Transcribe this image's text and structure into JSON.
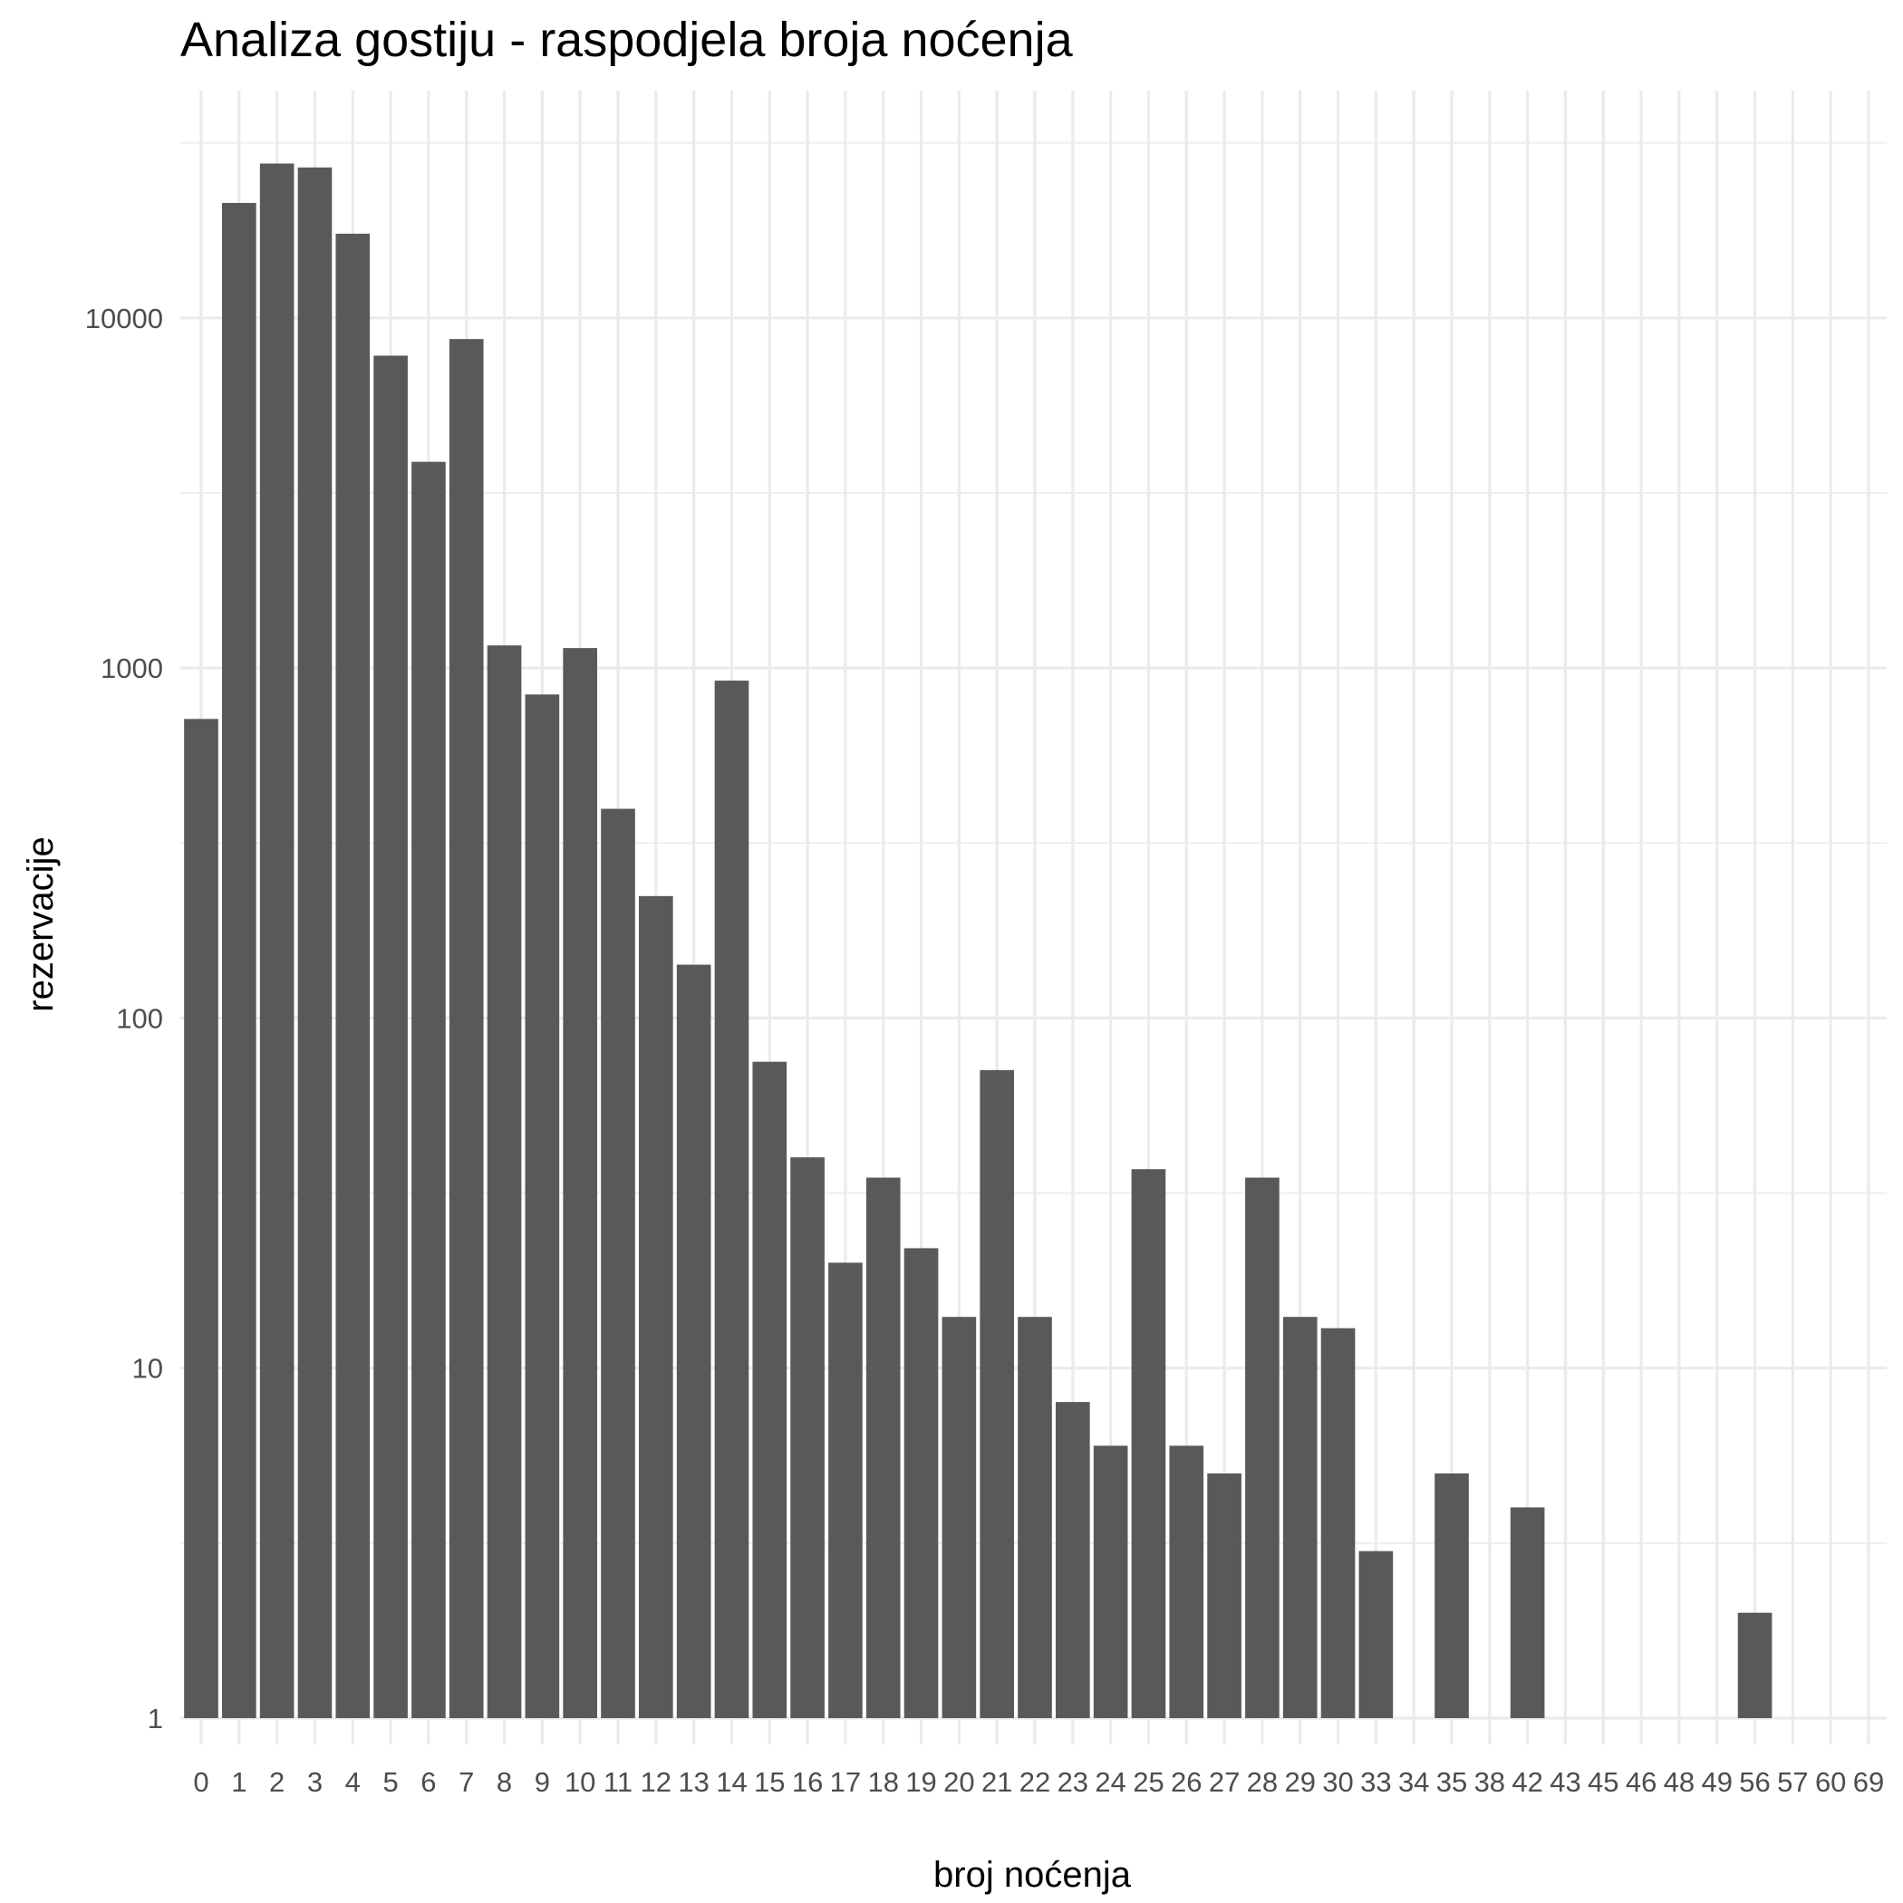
{
  "chart_data": {
    "type": "bar",
    "title": "Analiza gostiju - raspodjela broja noćenja",
    "xlabel": "broj noćenja",
    "ylabel": "rezervacije",
    "y_scale": "log10",
    "ylim": [
      1,
      50000
    ],
    "y_ticks": [
      1,
      10,
      100,
      1000,
      10000
    ],
    "y_tick_labels": [
      "1",
      "10",
      "100",
      "1000",
      "10000"
    ],
    "grid": true,
    "legend": "none",
    "bar_color": "#595959",
    "categories": [
      "0",
      "1",
      "2",
      "3",
      "4",
      "5",
      "6",
      "7",
      "8",
      "9",
      "10",
      "11",
      "12",
      "13",
      "14",
      "15",
      "16",
      "17",
      "18",
      "19",
      "20",
      "21",
      "22",
      "23",
      "24",
      "25",
      "26",
      "27",
      "28",
      "29",
      "30",
      "33",
      "34",
      "35",
      "38",
      "42",
      "43",
      "45",
      "46",
      "48",
      "49",
      "56",
      "57",
      "60",
      "69"
    ],
    "values": [
      715,
      21300,
      27600,
      26900,
      17400,
      7800,
      3880,
      8700,
      1160,
      840,
      1140,
      396,
      223,
      142,
      920,
      75,
      40,
      20,
      35,
      22,
      14,
      71,
      14,
      8,
      6,
      37,
      6,
      5,
      35,
      14,
      13,
      3,
      1,
      5,
      1,
      4,
      1,
      1,
      1,
      1,
      1,
      2,
      1,
      1,
      1
    ]
  }
}
